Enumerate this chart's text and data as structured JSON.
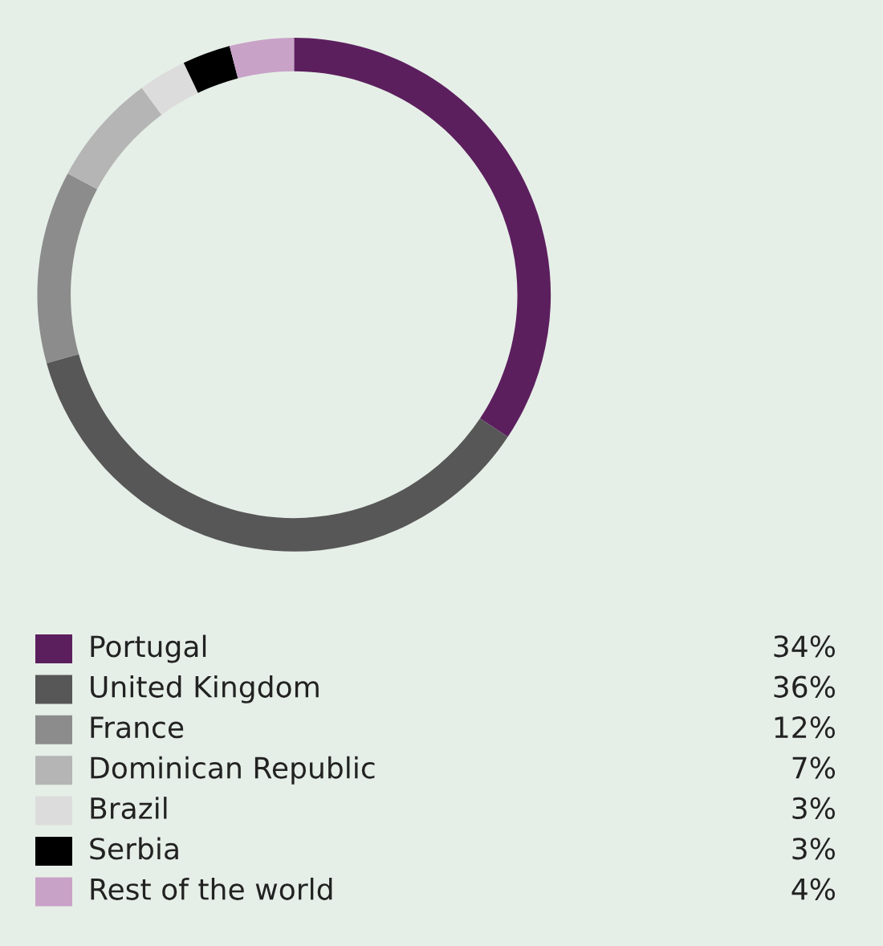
{
  "chart_data": {
    "type": "donut",
    "categories": [
      "Portugal",
      "United Kingdom",
      "France",
      "Dominican Republic",
      "Brazil",
      "Serbia",
      "Rest of the world"
    ],
    "values": [
      34,
      36,
      12,
      7,
      3,
      3,
      4
    ],
    "colors": [
      "#5c1f5e",
      "#575757",
      "#8c8c8c",
      "#b5b5b5",
      "#dcdcdc",
      "#000000",
      "#c9a2c8"
    ],
    "value_labels": [
      "34%",
      "36%",
      "12%",
      "7%",
      "3%",
      "3%",
      "4%"
    ],
    "legend": "bottom"
  }
}
